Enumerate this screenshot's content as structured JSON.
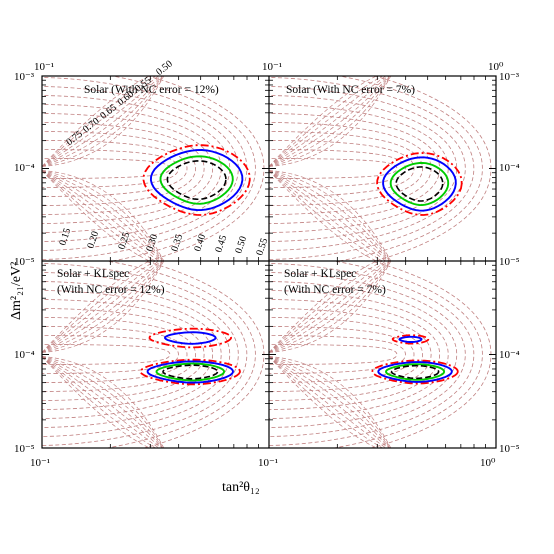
{
  "chart_data": {
    "type": "contour",
    "xlabel": "tan²θ₁₂",
    "ylabel": "Δm²₂₁/eV²",
    "x_scale": "log",
    "y_scale": "log",
    "xlim": [
      0.1,
      1.0
    ],
    "ylim": [
      1e-05,
      0.001
    ],
    "x_tick_labels": {
      "bottom_left": "10⁻¹",
      "bottom_mid": "10⁻¹",
      "bottom_right": "10⁰",
      "top_left": "10⁻¹",
      "top_mid": "10⁻¹",
      "top_right": "10⁰"
    },
    "y_tick_labels": {
      "top": "10⁻³",
      "mid": "10⁻⁴",
      "bottom": "10⁻⁵"
    },
    "contour_series_colors": {
      "3sigma": "#ff0000",
      "99pct": "#0000ff",
      "95pct": "#00cc00",
      "90pct": "#000000",
      "iso_rate": "#c08080"
    },
    "iso_rate_labels_upper": [
      "0.75",
      "0.70",
      "0.65",
      "0.60",
      "0.55",
      "0.50"
    ],
    "iso_rate_labels_lower": [
      "0.15",
      "0.20",
      "0.25",
      "0.30",
      "0.35",
      "0.40",
      "0.45",
      "0.50",
      "0.55"
    ],
    "panels": [
      {
        "label_line1": "Solar (With NC error = 12%)",
        "label_line2": "",
        "dataset": "Solar",
        "nc_error_pct": 12,
        "regions": [
          {
            "center_tan2": 0.48,
            "center_dm2": 7.5e-05,
            "extent_tan2": [
              0.3,
              0.8
            ],
            "extent_dm2": [
              3e-05,
              0.00017
            ]
          }
        ]
      },
      {
        "label_line1": "Solar (With NC error = 7%)",
        "label_line2": "",
        "dataset": "Solar",
        "nc_error_pct": 7,
        "regions": [
          {
            "center_tan2": 0.46,
            "center_dm2": 6.8e-05,
            "extent_tan2": [
              0.33,
              0.72
            ],
            "extent_dm2": [
              3e-05,
              0.00014
            ]
          }
        ]
      },
      {
        "label_line1": "Solar + KLspec",
        "label_line2": "(With NC error = 12%)",
        "dataset": "Solar + KLspec",
        "nc_error_pct": 12,
        "regions": [
          {
            "center_tan2": 0.45,
            "center_dm2": 6.5e-05,
            "extent_tan2": [
              0.3,
              0.75
            ],
            "extent_dm2": [
              4.8e-05,
              8.8e-05
            ]
          },
          {
            "center_tan2": 0.45,
            "center_dm2": 0.00015,
            "extent_tan2": [
              0.33,
              0.7
            ],
            "extent_dm2": [
              0.00012,
              0.00019
            ]
          }
        ]
      },
      {
        "label_line1": "Solar + KLspec",
        "label_line2": "(With NC error = 7%)",
        "dataset": "Solar + KLspec",
        "nc_error_pct": 7,
        "regions": [
          {
            "center_tan2": 0.44,
            "center_dm2": 6.5e-05,
            "extent_tan2": [
              0.3,
              0.66
            ],
            "extent_dm2": [
              5e-05,
              8.8e-05
            ]
          },
          {
            "center_tan2": 0.42,
            "center_dm2": 0.000145,
            "extent_tan2": [
              0.36,
              0.5
            ],
            "extent_dm2": [
              0.00013,
              0.00016
            ]
          }
        ]
      }
    ]
  }
}
